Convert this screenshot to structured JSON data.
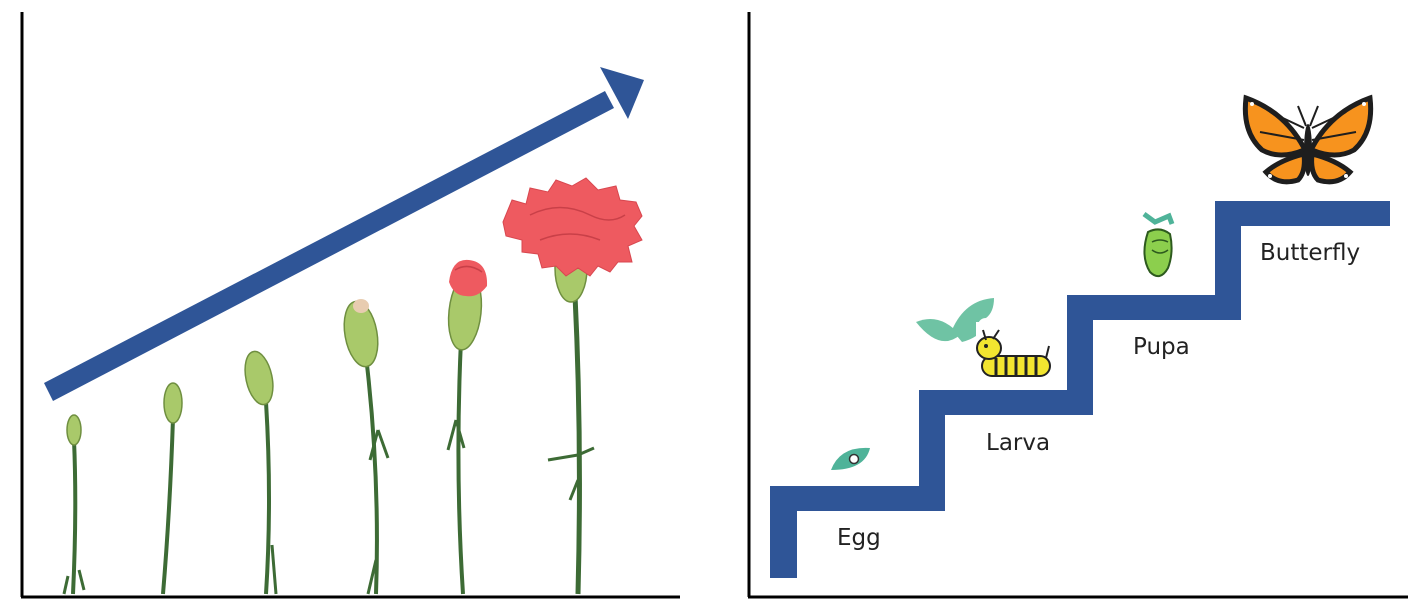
{
  "left_panel": {
    "arrow_color": "#2f5597",
    "stem_color": "#3d6b35",
    "bud_color": "#a9c96a",
    "flower_color": "#ee5a60"
  },
  "right_panel": {
    "stair_color": "#2f5597",
    "stages": [
      {
        "label": "Egg",
        "icon": "egg-icon"
      },
      {
        "label": "Larva",
        "icon": "caterpillar-icon"
      },
      {
        "label": "Pupa",
        "icon": "chrysalis-icon"
      },
      {
        "label": "Butterfly",
        "icon": "butterfly-icon"
      }
    ]
  }
}
